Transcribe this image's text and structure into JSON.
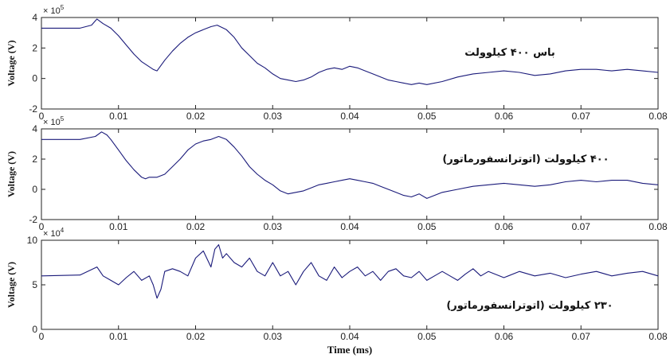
{
  "chart_data": [
    {
      "type": "line",
      "title": "",
      "xlabel": "",
      "ylabel": "Voltage (V)",
      "multiplier_base": "× 10",
      "multiplier_exp": "5",
      "annotation": "باس ۴۰۰ کیلوولت",
      "xlim": [
        0,
        0.08
      ],
      "ylim": [
        -2,
        4
      ],
      "xticks": [
        "0",
        "0.01",
        "0.02",
        "0.03",
        "0.04",
        "0.05",
        "0.06",
        "0.07",
        "0.08"
      ],
      "yticks": [
        "-2",
        "0",
        "2",
        "4"
      ],
      "line_color": "#1a1a7a",
      "series": [
        {
          "x": [
            0,
            0.005,
            0.0065,
            0.0072,
            0.008,
            0.009,
            0.01,
            0.011,
            0.012,
            0.013,
            0.0145,
            0.015,
            0.016,
            0.017,
            0.018,
            0.019,
            0.02,
            0.021,
            0.022,
            0.0228,
            0.024,
            0.025,
            0.026,
            0.027,
            0.028,
            0.029,
            0.03,
            0.031,
            0.032,
            0.033,
            0.034,
            0.035,
            0.036,
            0.037,
            0.038,
            0.039,
            0.04,
            0.041,
            0.042,
            0.043,
            0.044,
            0.045,
            0.046,
            0.047,
            0.048,
            0.049,
            0.05,
            0.052,
            0.054,
            0.056,
            0.058,
            0.06,
            0.062,
            0.064,
            0.066,
            0.068,
            0.07,
            0.072,
            0.074,
            0.076,
            0.078,
            0.08
          ],
          "values": [
            3.3,
            3.3,
            3.5,
            3.9,
            3.6,
            3.3,
            2.8,
            2.2,
            1.6,
            1.1,
            0.6,
            0.5,
            1.2,
            1.8,
            2.3,
            2.7,
            3.0,
            3.2,
            3.4,
            3.5,
            3.2,
            2.7,
            2.0,
            1.5,
            1.0,
            0.7,
            0.3,
            0.0,
            -0.1,
            -0.2,
            -0.1,
            0.1,
            0.4,
            0.6,
            0.7,
            0.6,
            0.8,
            0.7,
            0.5,
            0.3,
            0.1,
            -0.1,
            -0.2,
            -0.3,
            -0.4,
            -0.3,
            -0.4,
            -0.2,
            0.1,
            0.3,
            0.4,
            0.5,
            0.4,
            0.2,
            0.3,
            0.5,
            0.6,
            0.6,
            0.5,
            0.6,
            0.5,
            0.4
          ]
        }
      ]
    },
    {
      "type": "line",
      "title": "",
      "xlabel": "",
      "ylabel": "Voltage (V)",
      "multiplier_base": "× 10",
      "multiplier_exp": "5",
      "annotation": "۴۰۰ کیلوولت (اتوترانسفورماتور)",
      "xlim": [
        0,
        0.08
      ],
      "ylim": [
        -2,
        4
      ],
      "xticks": [
        "0",
        "0.01",
        "0.02",
        "0.03",
        "0.04",
        "0.05",
        "0.06",
        "0.07",
        "0.08"
      ],
      "yticks": [
        "-2",
        "0",
        "2",
        "4"
      ],
      "line_color": "#1a1a7a",
      "series": [
        {
          "x": [
            0,
            0.005,
            0.007,
            0.0078,
            0.0085,
            0.009,
            0.01,
            0.011,
            0.012,
            0.013,
            0.0135,
            0.014,
            0.015,
            0.016,
            0.017,
            0.018,
            0.019,
            0.02,
            0.021,
            0.022,
            0.023,
            0.024,
            0.025,
            0.026,
            0.027,
            0.028,
            0.029,
            0.03,
            0.031,
            0.032,
            0.033,
            0.034,
            0.035,
            0.036,
            0.037,
            0.038,
            0.039,
            0.04,
            0.041,
            0.042,
            0.043,
            0.044,
            0.045,
            0.046,
            0.047,
            0.048,
            0.049,
            0.05,
            0.052,
            0.054,
            0.056,
            0.058,
            0.06,
            0.062,
            0.064,
            0.066,
            0.068,
            0.07,
            0.072,
            0.074,
            0.076,
            0.078,
            0.08
          ],
          "values": [
            3.3,
            3.3,
            3.5,
            3.8,
            3.6,
            3.3,
            2.6,
            1.9,
            1.3,
            0.8,
            0.7,
            0.8,
            0.8,
            1.0,
            1.5,
            2.0,
            2.6,
            3.0,
            3.2,
            3.3,
            3.5,
            3.3,
            2.8,
            2.2,
            1.5,
            1.0,
            0.6,
            0.3,
            -0.1,
            -0.3,
            -0.2,
            -0.1,
            0.1,
            0.3,
            0.4,
            0.5,
            0.6,
            0.7,
            0.6,
            0.5,
            0.4,
            0.2,
            0.0,
            -0.2,
            -0.4,
            -0.5,
            -0.3,
            -0.6,
            -0.2,
            0.0,
            0.2,
            0.3,
            0.4,
            0.3,
            0.2,
            0.3,
            0.5,
            0.6,
            0.5,
            0.6,
            0.6,
            0.4,
            0.3
          ]
        }
      ]
    },
    {
      "type": "line",
      "title": "",
      "xlabel": "Time (ms)",
      "ylabel": "Voltage (V)",
      "multiplier_base": "× 10",
      "multiplier_exp": "4",
      "annotation": "۲۳۰ کیلوولت (اتوترانسفورماتور)",
      "xlim": [
        0,
        0.08
      ],
      "ylim": [
        0,
        10
      ],
      "xticks": [
        "0",
        "0.01",
        "0.02",
        "0.03",
        "0.04",
        "0.05",
        "0.06",
        "0.07",
        "0.08"
      ],
      "yticks": [
        "0",
        "5",
        "10"
      ],
      "line_color": "#1a1a7a",
      "series": [
        {
          "x": [
            0,
            0.005,
            0.0072,
            0.008,
            0.009,
            0.01,
            0.011,
            0.012,
            0.013,
            0.014,
            0.0145,
            0.015,
            0.0155,
            0.016,
            0.017,
            0.018,
            0.019,
            0.02,
            0.021,
            0.022,
            0.0225,
            0.023,
            0.0235,
            0.024,
            0.025,
            0.026,
            0.027,
            0.028,
            0.029,
            0.03,
            0.031,
            0.032,
            0.033,
            0.034,
            0.035,
            0.036,
            0.037,
            0.038,
            0.039,
            0.04,
            0.041,
            0.042,
            0.043,
            0.044,
            0.045,
            0.046,
            0.047,
            0.048,
            0.049,
            0.05,
            0.051,
            0.052,
            0.053,
            0.054,
            0.055,
            0.056,
            0.057,
            0.058,
            0.06,
            0.062,
            0.064,
            0.066,
            0.068,
            0.07,
            0.072,
            0.074,
            0.076,
            0.078,
            0.08
          ],
          "values": [
            6.0,
            6.1,
            7.0,
            6.0,
            5.5,
            5.0,
            5.8,
            6.5,
            5.5,
            6.0,
            5.0,
            3.5,
            4.5,
            6.5,
            6.8,
            6.5,
            6.0,
            8.0,
            8.8,
            7.0,
            9.0,
            9.5,
            8.0,
            8.5,
            7.5,
            7.0,
            8.0,
            6.5,
            6.0,
            7.5,
            6.0,
            6.5,
            5.0,
            6.5,
            7.5,
            6.0,
            5.5,
            7.0,
            5.8,
            6.5,
            7.0,
            6.0,
            6.5,
            5.5,
            6.5,
            6.8,
            6.0,
            5.8,
            6.5,
            5.5,
            6.0,
            6.5,
            6.0,
            5.5,
            6.2,
            6.8,
            6.0,
            6.5,
            5.8,
            6.5,
            6.0,
            6.3,
            5.8,
            6.2,
            6.5,
            6.0,
            6.3,
            6.5,
            6.0
          ]
        }
      ]
    }
  ]
}
